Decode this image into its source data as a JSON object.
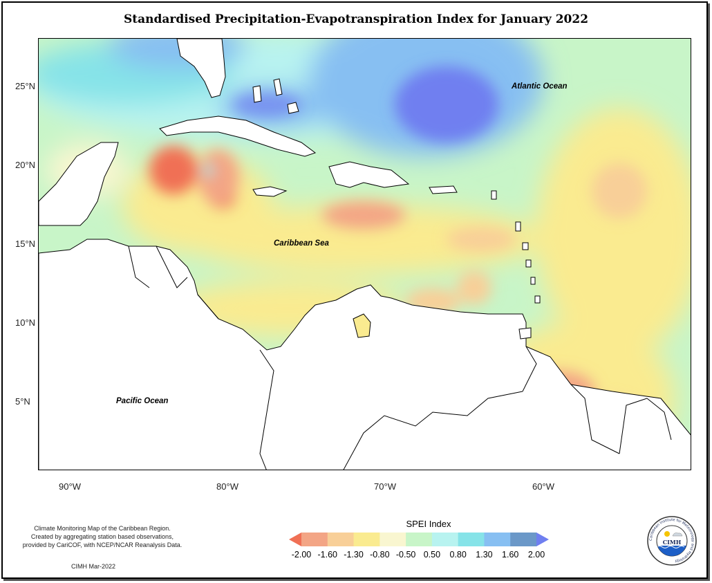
{
  "title": "Standardised Precipitation-Evapotranspiration Index for January 2022",
  "map": {
    "lat_labels": [
      "25°N",
      "20°N",
      "15°N",
      "10°N",
      "5°N"
    ],
    "lon_labels": [
      "90°W",
      "80°W",
      "70°W",
      "60°W"
    ],
    "ocean_labels": {
      "atlantic": "Atlantic Ocean",
      "caribbean": "Caribbean Sea",
      "pacific": "Pacific Ocean"
    }
  },
  "legend": {
    "title": "SPEI Index",
    "ticks": [
      "-2.00",
      "-1.60",
      "-1.30",
      "-0.80",
      "-0.50",
      "0.50",
      "0.80",
      "1.30",
      "1.60",
      "2.00"
    ],
    "colors": [
      "#f07055",
      "#f3a585",
      "#f8cf98",
      "#faeb90",
      "#f9f6d0",
      "#c8f5c8",
      "#b8f3f0",
      "#86e3e8",
      "#87bff2",
      "#6b98c8",
      "#6f7ff0"
    ]
  },
  "footer": {
    "line1": "Climate Monitoring Map of the Caribbean Region.",
    "line2": "Created by aggregating station based observations,",
    "line3": "provided by CariCOF, with NCEP/NCAR Reanalysis Data.",
    "credit": "CIMH Mar-2022"
  },
  "logo": {
    "text": "CIMH",
    "ring_text": "Caribbean Institute for Meteorology and Hydrology"
  }
}
